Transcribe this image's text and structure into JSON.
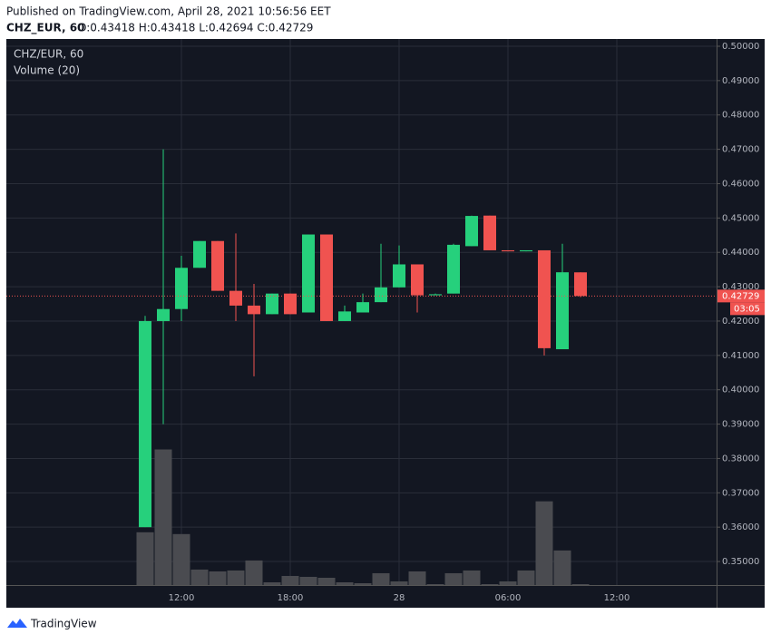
{
  "header": {
    "published": "Published on TradingView.com, April 28, 2021 10:56:56 EET",
    "symbol": "CHZ_EUR, 60",
    "ohlc": "O:0.43418 H:0.43418 L:0.42694 C:0.42729"
  },
  "chart_data": {
    "type": "candlestick",
    "x": [
      10,
      11,
      12,
      13,
      14,
      15,
      16,
      17,
      18,
      19,
      20,
      21,
      22,
      23,
      24,
      25,
      26,
      27,
      28,
      29,
      30,
      31,
      32,
      33,
      34
    ],
    "series": [
      {
        "name": "CHZ/EUR, 60",
        "up_color": "#26d07c",
        "down_color": "#f05350",
        "open": [
          0.36,
          0.42,
          0.4235,
          0.4355,
          0.4433,
          0.4288,
          0.4245,
          0.422,
          0.428,
          0.4225,
          0.4452,
          0.42,
          0.4225,
          0.4255,
          0.4298,
          0.4365,
          0.4275,
          0.428,
          0.4418,
          0.4507,
          0.4406,
          0.4403,
          0.4406,
          0.4118,
          0.43418
        ],
        "high": [
          0.4215,
          0.47,
          0.439,
          0.4433,
          0.4433,
          0.4455,
          0.4308,
          0.428,
          0.428,
          0.4452,
          0.4452,
          0.4245,
          0.428,
          0.4425,
          0.442,
          0.4365,
          0.428,
          0.4425,
          0.4507,
          0.4507,
          0.4406,
          0.4406,
          0.4406,
          0.4425,
          0.43418
        ],
        "low": [
          0.36,
          0.39,
          0.42,
          0.4355,
          0.4288,
          0.42,
          0.4039,
          0.422,
          0.422,
          0.4225,
          0.42,
          0.42,
          0.4225,
          0.4255,
          0.4298,
          0.4225,
          0.4275,
          0.428,
          0.4418,
          0.4406,
          0.4403,
          0.4403,
          0.41,
          0.4118,
          0.42694
        ],
        "close": [
          0.42,
          0.4235,
          0.4355,
          0.4433,
          0.4288,
          0.4245,
          0.422,
          0.428,
          0.422,
          0.4452,
          0.42,
          0.4228,
          0.4255,
          0.4298,
          0.4365,
          0.4275,
          0.4278,
          0.4422,
          0.4506,
          0.4406,
          0.4403,
          0.4406,
          0.4121,
          0.4342,
          0.42729
        ]
      },
      {
        "name": "Volume (20)",
        "color": "#4a4b50",
        "values": [
          58,
          149,
          56,
          17,
          15,
          16,
          27,
          3,
          10,
          9,
          8,
          3,
          2,
          13,
          4,
          15,
          1,
          13,
          16,
          1,
          4,
          16,
          92,
          38,
          1
        ]
      }
    ],
    "xlim": [
      2.35,
      41.5
    ],
    "xticks": [
      {
        "value": 12,
        "label": "12:00"
      },
      {
        "value": 18,
        "label": "18:00"
      },
      {
        "value": 24,
        "label": "28"
      },
      {
        "value": 30,
        "label": "06:00"
      },
      {
        "value": 36,
        "label": "12:00"
      }
    ],
    "ylim": [
      0.34315,
      0.50211
    ],
    "yticks": [
      {
        "value": 0.5,
        "label": "0.50000"
      },
      {
        "value": 0.49,
        "label": "0.49000"
      },
      {
        "value": 0.48,
        "label": "0.48000"
      },
      {
        "value": 0.47,
        "label": "0.47000"
      },
      {
        "value": 0.46,
        "label": "0.46000"
      },
      {
        "value": 0.45,
        "label": "0.45000"
      },
      {
        "value": 0.44,
        "label": "0.44000"
      },
      {
        "value": 0.43,
        "label": "0.43000"
      },
      {
        "value": 0.42,
        "label": "0.42000"
      },
      {
        "value": 0.41,
        "label": "0.41000"
      },
      {
        "value": 0.4,
        "label": "0.40000"
      },
      {
        "value": 0.39,
        "label": "0.39000"
      },
      {
        "value": 0.38,
        "label": "0.38000"
      },
      {
        "value": 0.37,
        "label": "0.37000"
      },
      {
        "value": 0.36,
        "label": "0.36000"
      },
      {
        "value": 0.35,
        "label": "0.35000"
      }
    ],
    "volume_ylim": [
      0,
      600
    ],
    "last_price": 0.42729,
    "countdown": "03:05",
    "grid": true
  },
  "footer": {
    "brand": "TradingView"
  }
}
